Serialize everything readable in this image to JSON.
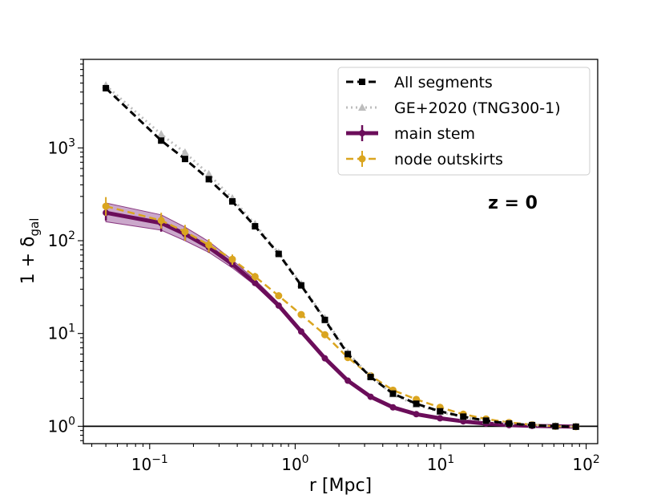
{
  "chart_data": {
    "type": "line",
    "xscale": "log",
    "yscale": "log",
    "xlim": [
      0.035,
      120
    ],
    "ylim": [
      0.65,
      9000
    ],
    "xlabel": "r [Mpc]",
    "ylabel_main": "1 + δ",
    "ylabel_sub": "gal",
    "annotation": "z = 0",
    "legend_position": "top-right",
    "grid": false,
    "hline_y": 1,
    "x_ticks": [
      {
        "value": 0.1,
        "base": "10",
        "exp": "−1"
      },
      {
        "value": 1,
        "base": "10",
        "exp": "0"
      },
      {
        "value": 10,
        "base": "10",
        "exp": "1"
      },
      {
        "value": 100,
        "base": "10",
        "exp": "2"
      }
    ],
    "y_ticks": [
      {
        "value": 1,
        "base": "10",
        "exp": "0"
      },
      {
        "value": 10,
        "base": "10",
        "exp": "1"
      },
      {
        "value": 100,
        "base": "10",
        "exp": "2"
      },
      {
        "value": 1000,
        "base": "10",
        "exp": "3"
      }
    ],
    "series": [
      {
        "name": "All segments",
        "color": "#000000",
        "dash": "9,5",
        "marker": "square",
        "x": [
          0.05,
          0.12,
          0.175,
          0.255,
          0.37,
          0.53,
          0.77,
          1.1,
          1.6,
          2.3,
          3.3,
          4.7,
          6.8,
          9.9,
          14.3,
          20.5,
          29.5,
          42.5,
          61.5,
          85
        ],
        "y": [
          4400,
          1200,
          760,
          460,
          265,
          143,
          72,
          33,
          14,
          6.0,
          3.4,
          2.25,
          1.75,
          1.45,
          1.27,
          1.15,
          1.07,
          1.03,
          1.0,
          0.99
        ]
      },
      {
        "name": "GE+2020 (TNG300-1)",
        "color": "#bdbdbd",
        "dash": "2,4",
        "marker": "triangle",
        "x": [
          0.05,
          0.12,
          0.175,
          0.255,
          0.37,
          0.53,
          0.77,
          1.1,
          1.6,
          2.3,
          3.3,
          4.7,
          6.8,
          9.9,
          14.3,
          20.5,
          29.5,
          42.5,
          61.5,
          85
        ],
        "y": [
          4700,
          1400,
          890,
          520,
          285,
          150,
          74,
          34,
          14.5,
          6.2,
          3.45,
          2.2,
          1.7,
          1.42,
          1.25,
          1.14,
          1.07,
          1.03,
          1.0,
          0.99
        ]
      },
      {
        "name": "main stem",
        "color": "#6b0d5a",
        "band_color": "#a060a0",
        "marker": "circle",
        "x": [
          0.05,
          0.12,
          0.175,
          0.255,
          0.37,
          0.53,
          0.77,
          1.1,
          1.6,
          2.3,
          3.3,
          4.7,
          6.8,
          9.9,
          14.3,
          20.5,
          29.5,
          42.5,
          61.5,
          85
        ],
        "y": [
          200,
          155,
          118,
          85,
          56,
          35,
          20,
          10.5,
          5.4,
          3.1,
          2.08,
          1.6,
          1.35,
          1.22,
          1.13,
          1.07,
          1.03,
          1.01,
          1.0,
          0.99
        ],
        "y_low": [
          160,
          130,
          100,
          75,
          51,
          33,
          19,
          10.0,
          5.2,
          3.0,
          2.02,
          1.56,
          1.32,
          1.2,
          1.12,
          1.06,
          1.02,
          1.0,
          0.99,
          0.98
        ],
        "y_high": [
          255,
          190,
          140,
          98,
          62,
          38,
          21.3,
          11.1,
          5.7,
          3.2,
          2.15,
          1.65,
          1.38,
          1.25,
          1.15,
          1.08,
          1.04,
          1.02,
          1.01,
          1.0
        ],
        "err_low": [
          165,
          125,
          100,
          74,
          52,
          33,
          19.2,
          10.1,
          5.25,
          3.02,
          2.04,
          1.57,
          1.33,
          1.21,
          1.12,
          1.06,
          1.02,
          1.0,
          0.99,
          0.98
        ],
        "err_high": [
          245,
          185,
          140,
          97,
          61,
          37.5,
          21,
          11,
          5.6,
          3.2,
          2.13,
          1.64,
          1.37,
          1.24,
          1.14,
          1.08,
          1.04,
          1.02,
          1.01,
          1.0
        ]
      },
      {
        "name": "node outskirts",
        "color": "#daa520",
        "dash": "9,5",
        "marker": "circle",
        "x": [
          0.05,
          0.12,
          0.175,
          0.255,
          0.37,
          0.53,
          0.77,
          1.1,
          1.6,
          2.3,
          3.3,
          4.7,
          6.8,
          9.9,
          14.3,
          20.5,
          29.5,
          42.5,
          61.5,
          85
        ],
        "y": [
          235,
          165,
          125,
          90,
          63,
          41,
          25.5,
          16.0,
          9.7,
          5.5,
          3.5,
          2.45,
          1.95,
          1.6,
          1.35,
          1.2,
          1.1,
          1.04,
          1.0,
          0.99
        ],
        "err_low": [
          185,
          135,
          100,
          75,
          55,
          37,
          23.5,
          15.0,
          9.2,
          5.2,
          3.3,
          2.35,
          1.88,
          1.55,
          1.32,
          1.18,
          1.08,
          1.03,
          0.99,
          0.98
        ],
        "err_high": [
          295,
          200,
          148,
          104,
          71,
          45,
          27.5,
          17.0,
          10.2,
          5.8,
          3.7,
          2.55,
          2.02,
          1.65,
          1.38,
          1.22,
          1.12,
          1.06,
          1.01,
          1.0
        ]
      }
    ]
  }
}
